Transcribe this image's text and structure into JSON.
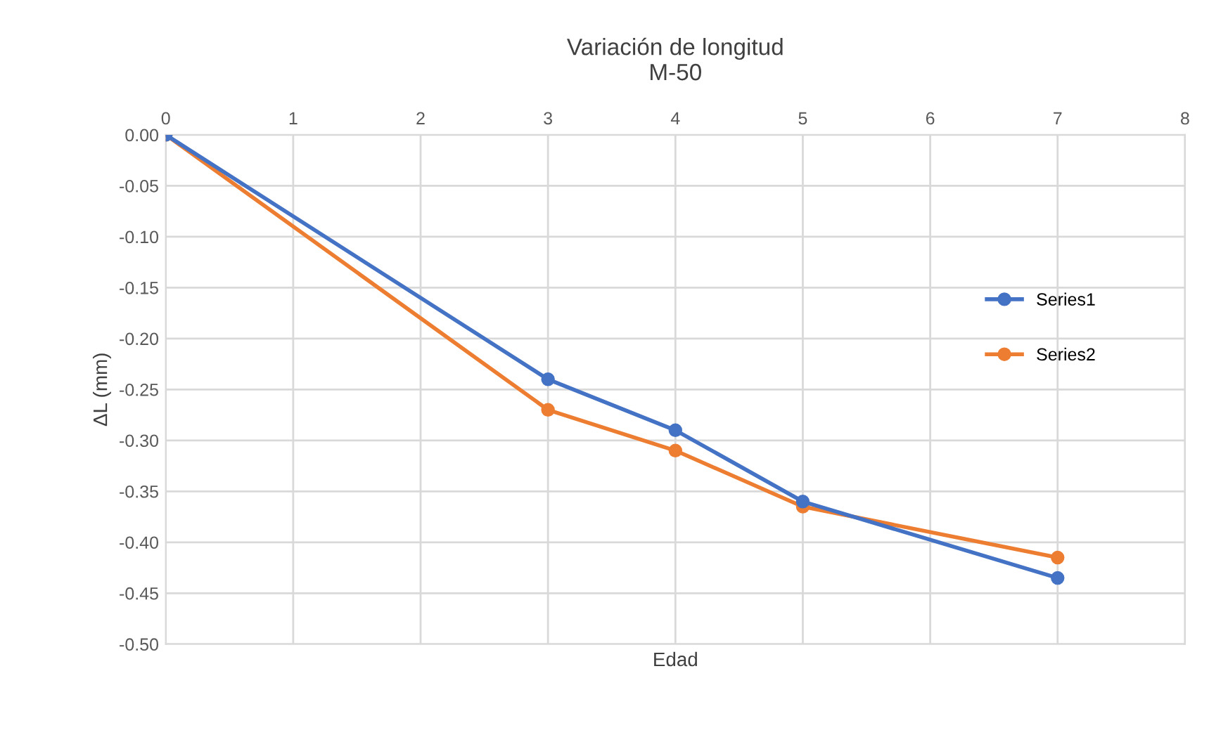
{
  "chart_data": {
    "type": "line",
    "title": "Variación de longitud\nM-50",
    "xlabel": "Edad",
    "ylabel": "ΔL (mm)",
    "x": [
      0,
      3,
      4,
      5,
      7
    ],
    "series": [
      {
        "name": "Series1",
        "color": "#4472c4",
        "values": [
          0,
          -0.24,
          -0.29,
          -0.36,
          -0.435
        ]
      },
      {
        "name": "Series2",
        "color": "#ed7d31",
        "values": [
          0,
          -0.27,
          -0.31,
          -0.365,
          -0.415
        ]
      }
    ],
    "xlim": [
      0,
      8
    ],
    "xticks": [
      0,
      1,
      2,
      3,
      4,
      5,
      6,
      7,
      8
    ],
    "ylim": [
      -0.5,
      0
    ],
    "yticks": [
      {
        "value": 0,
        "label": "0.00"
      },
      {
        "value": -0.05,
        "label": "-0.05"
      },
      {
        "value": -0.1,
        "label": "-0.10"
      },
      {
        "value": -0.15,
        "label": "-0.15"
      },
      {
        "value": -0.2,
        "label": "-0.20"
      },
      {
        "value": -0.25,
        "label": "-0.25"
      },
      {
        "value": -0.3,
        "label": "-0.30"
      },
      {
        "value": -0.35,
        "label": "-0.35"
      },
      {
        "value": -0.4,
        "label": "-0.40"
      },
      {
        "value": -0.45,
        "label": "-0.45"
      },
      {
        "value": -0.5,
        "label": "-0.50"
      }
    ],
    "grid": true,
    "legend": "right",
    "marker": "circle",
    "line_style": "solid"
  }
}
